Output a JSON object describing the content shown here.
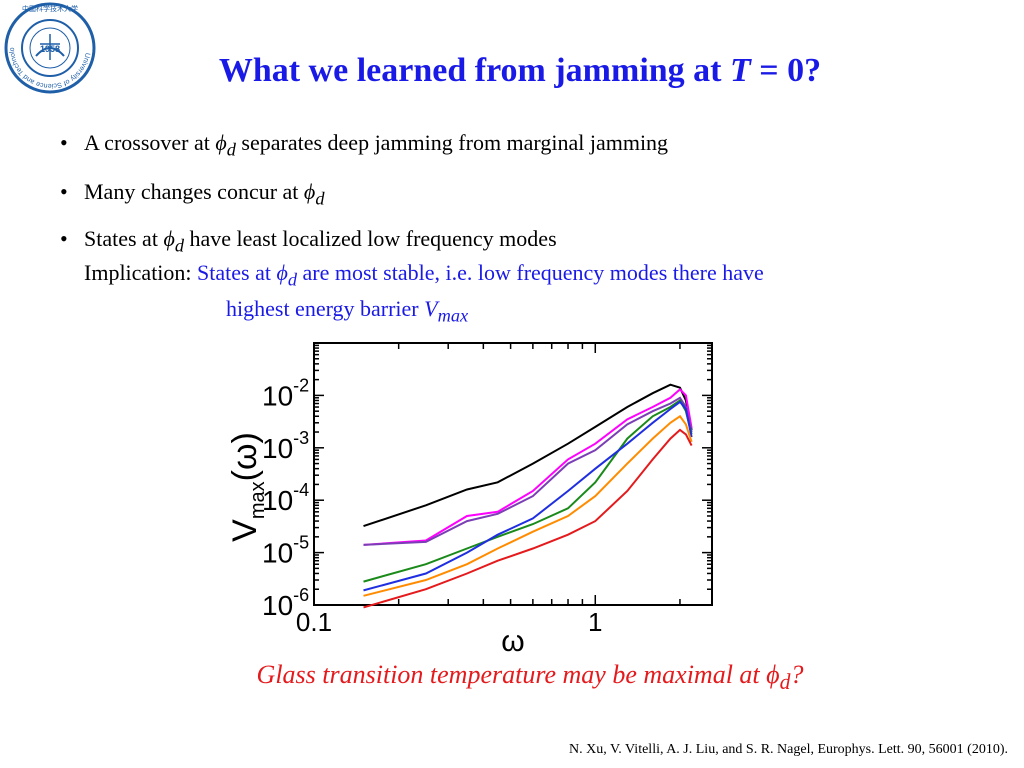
{
  "logo": {
    "year": "1958",
    "ring_text": "University of Science and Technology of China",
    "chinese_text": "中国科学技术大学",
    "color": "#1f5fa8"
  },
  "title": {
    "prefix": "What we learned from jamming at ",
    "var": "T",
    "suffix": " = 0?"
  },
  "bullets": [
    {
      "pre": "A crossover at ",
      "sym": "ϕ",
      "sub": "d",
      "post": " separates deep jamming from marginal jamming"
    },
    {
      "pre": "Many changes concur at ",
      "sym": "ϕ",
      "sub": "d",
      "post": ""
    },
    {
      "pre": "States at ",
      "sym": "ϕ",
      "sub": "d",
      "post": " have least localized low frequency modes"
    }
  ],
  "implication": {
    "label": "Implication: ",
    "line1_pre": "States at ",
    "line1_sym": "ϕ",
    "line1_sub": "d",
    "line1_post": " are most stable, i.e. low frequency modes there have",
    "line2_pre": "highest energy barrier ",
    "line2_var": "V",
    "line2_sub": "max"
  },
  "chart_data": {
    "type": "line",
    "xlabel": "ω",
    "ylabel_main": "V",
    "ylabel_sub": "max",
    "ylabel_arg": "(ω)",
    "x_scale": "log",
    "y_scale": "log",
    "xlim": [
      0.1,
      2.6
    ],
    "ylim": [
      1e-06,
      0.1
    ],
    "x_ticks": [
      {
        "value": 0.1,
        "label": "0.1"
      },
      {
        "value": 1,
        "label": "1"
      }
    ],
    "y_ticks": [
      {
        "value": 1e-06,
        "base": "10",
        "exp": "-6"
      },
      {
        "value": 1e-05,
        "base": "10",
        "exp": "-5"
      },
      {
        "value": 0.0001,
        "base": "10",
        "exp": "-4"
      },
      {
        "value": 0.001,
        "base": "10",
        "exp": "-3"
      },
      {
        "value": 0.01,
        "base": "10",
        "exp": "-2"
      }
    ],
    "series": [
      {
        "color": "#000000",
        "points": [
          [
            0.15,
            3.2e-05
          ],
          [
            0.25,
            8e-05
          ],
          [
            0.35,
            0.00016
          ],
          [
            0.45,
            0.00022
          ],
          [
            0.6,
            0.0005
          ],
          [
            0.8,
            0.0012
          ],
          [
            1.0,
            0.0025
          ],
          [
            1.3,
            0.006
          ],
          [
            1.6,
            0.011
          ],
          [
            1.85,
            0.016
          ],
          [
            2.0,
            0.014
          ],
          [
            2.1,
            0.008
          ],
          [
            2.2,
            0.0022
          ]
        ]
      },
      {
        "color": "#ff00ff",
        "points": [
          [
            0.15,
            1.4e-05
          ],
          [
            0.25,
            1.7e-05
          ],
          [
            0.35,
            5e-05
          ],
          [
            0.45,
            6e-05
          ],
          [
            0.6,
            0.00015
          ],
          [
            0.8,
            0.0006
          ],
          [
            1.0,
            0.0012
          ],
          [
            1.3,
            0.0035
          ],
          [
            1.6,
            0.006
          ],
          [
            1.85,
            0.009
          ],
          [
            2.0,
            0.013
          ],
          [
            2.1,
            0.01
          ],
          [
            2.2,
            0.0024
          ]
        ]
      },
      {
        "color": "#7b3fb5",
        "points": [
          [
            0.15,
            1.4e-05
          ],
          [
            0.25,
            1.6e-05
          ],
          [
            0.35,
            4e-05
          ],
          [
            0.45,
            5.5e-05
          ],
          [
            0.6,
            0.00012
          ],
          [
            0.8,
            0.0005
          ],
          [
            1.0,
            0.0009
          ],
          [
            1.3,
            0.0028
          ],
          [
            1.6,
            0.005
          ],
          [
            1.85,
            0.007
          ],
          [
            2.0,
            0.009
          ],
          [
            2.1,
            0.006
          ],
          [
            2.2,
            0.002
          ]
        ]
      },
      {
        "color": "#1a8a1a",
        "points": [
          [
            0.15,
            2.8e-06
          ],
          [
            0.25,
            6e-06
          ],
          [
            0.35,
            1.2e-05
          ],
          [
            0.45,
            2e-05
          ],
          [
            0.6,
            3.5e-05
          ],
          [
            0.8,
            7e-05
          ],
          [
            1.0,
            0.00022
          ],
          [
            1.3,
            0.0015
          ],
          [
            1.6,
            0.004
          ],
          [
            1.85,
            0.006
          ],
          [
            2.0,
            0.008
          ],
          [
            2.1,
            0.005
          ],
          [
            2.2,
            0.0018
          ]
        ]
      },
      {
        "color": "#1f2fe0",
        "points": [
          [
            0.15,
            1.9e-06
          ],
          [
            0.25,
            4e-06
          ],
          [
            0.35,
            1e-05
          ],
          [
            0.45,
            2.2e-05
          ],
          [
            0.6,
            4.5e-05
          ],
          [
            0.8,
            0.00015
          ],
          [
            1.0,
            0.0004
          ],
          [
            1.3,
            0.0012
          ],
          [
            1.6,
            0.003
          ],
          [
            1.85,
            0.0055
          ],
          [
            2.0,
            0.0075
          ],
          [
            2.1,
            0.0055
          ],
          [
            2.2,
            0.0016
          ]
        ]
      },
      {
        "color": "#ff8c00",
        "points": [
          [
            0.15,
            1.5e-06
          ],
          [
            0.25,
            3e-06
          ],
          [
            0.35,
            6e-06
          ],
          [
            0.45,
            1.2e-05
          ],
          [
            0.6,
            2.5e-05
          ],
          [
            0.8,
            5e-05
          ],
          [
            1.0,
            0.00012
          ],
          [
            1.3,
            0.0005
          ],
          [
            1.6,
            0.0015
          ],
          [
            1.85,
            0.003
          ],
          [
            2.0,
            0.004
          ],
          [
            2.1,
            0.0028
          ],
          [
            2.2,
            0.0013
          ]
        ]
      },
      {
        "color": "#e41a1c",
        "points": [
          [
            0.15,
            9e-07
          ],
          [
            0.25,
            2e-06
          ],
          [
            0.35,
            4e-06
          ],
          [
            0.45,
            7e-06
          ],
          [
            0.6,
            1.2e-05
          ],
          [
            0.8,
            2.2e-05
          ],
          [
            1.0,
            4e-05
          ],
          [
            1.3,
            0.00015
          ],
          [
            1.6,
            0.0006
          ],
          [
            1.85,
            0.0015
          ],
          [
            2.0,
            0.0022
          ],
          [
            2.1,
            0.0018
          ],
          [
            2.2,
            0.0011
          ]
        ]
      }
    ]
  },
  "glass": {
    "pre": "Glass transition temperature may be maximal at ",
    "sym": "ϕ",
    "sub": "d",
    "post": "?"
  },
  "reference": "N. Xu, V. Vitelli, A. J. Liu, and S. R. Nagel, Europhys. Lett. 90, 56001 (2010)."
}
